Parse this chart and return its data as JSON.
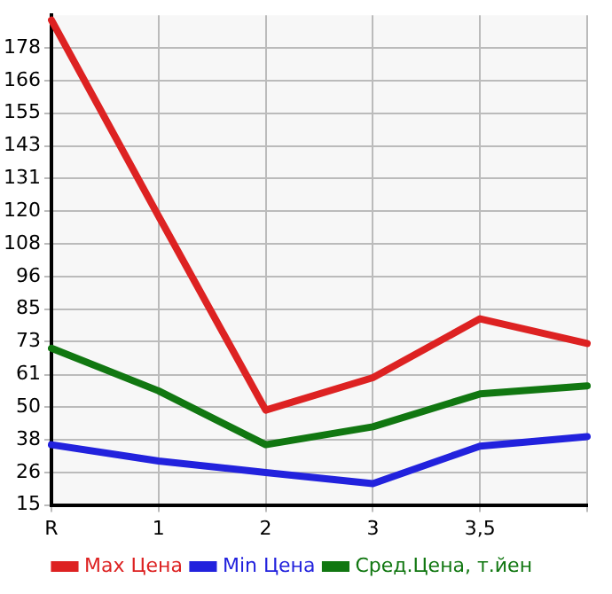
{
  "chart_data": {
    "type": "line",
    "categories": [
      "R",
      "1",
      "2",
      "3",
      "3,5",
      null
    ],
    "series": [
      {
        "name": "Max Цена",
        "color": "#dd2222",
        "values": [
          187.9,
          118,
          48.8,
          60.4,
          81.4,
          72.6
        ]
      },
      {
        "name": "Min Цена",
        "color": "#2222dd",
        "values": [
          36.5,
          30.7,
          26.6,
          22.6,
          36.0,
          39.4
        ]
      },
      {
        "name": "Сред.Цена, т.йен",
        "color": "#117711",
        "values": [
          70.9,
          55.7,
          36.5,
          42.9,
          54.6,
          57.5
        ]
      }
    ],
    "ylim": [
      15,
      189.64
    ],
    "yticks": [
      15,
      {
        "value": 26.49,
        "label": "26"
      },
      {
        "value": 38.29,
        "label": "38"
      },
      {
        "value": 49.93,
        "label": "50"
      },
      {
        "value": 61.49,
        "label": "61"
      },
      {
        "value": 73.21,
        "label": "73"
      },
      {
        "value": 84.86,
        "label": "85"
      },
      {
        "value": 96.5,
        "label": "96"
      },
      {
        "value": 108.14,
        "label": "108"
      },
      {
        "value": 119.79,
        "label": "120"
      },
      {
        "value": 131.43,
        "label": "131"
      },
      {
        "value": 143.07,
        "label": "143"
      },
      {
        "value": 154.71,
        "label": "155"
      },
      {
        "value": 166.36,
        "label": "166"
      },
      178
    ],
    "grid": true,
    "legend": "bottom",
    "marker": "none",
    "line_style": "solid"
  }
}
